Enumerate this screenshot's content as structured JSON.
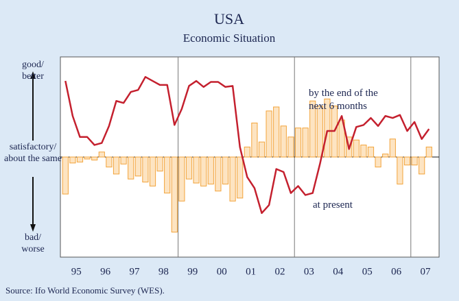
{
  "chart_data": {
    "type": "bar",
    "title": "USA",
    "subtitle": "Economic Situation",
    "source": "Source: Ifo World Economic Survey (WES).",
    "y_labels": [
      [
        "good/",
        "better"
      ],
      [
        "satisfactory/",
        "about the same"
      ],
      [
        "bad/",
        "worse"
      ]
    ],
    "categories": [
      null,
      "95",
      null,
      null,
      null,
      "96",
      null,
      null,
      null,
      "97",
      null,
      null,
      null,
      "98",
      null,
      null,
      null,
      "99",
      null,
      null,
      null,
      "00",
      null,
      null,
      null,
      "01",
      null,
      null,
      null,
      "02",
      null,
      null,
      null,
      "03",
      null,
      null,
      null,
      "04",
      null,
      null,
      null,
      "05",
      null,
      null,
      null,
      "06",
      null,
      null,
      null,
      "07",
      null
    ],
    "ylim": [
      -100,
      100
    ],
    "series": [
      {
        "name": "at present",
        "type": "bar",
        "color": "#f2a33a",
        "fill": "#fde4c2",
        "values": [
          -37,
          -6,
          -5,
          -2,
          -3,
          5,
          -10,
          -17,
          -7,
          -22,
          -19,
          -25,
          -29,
          -14,
          -36,
          -75,
          -44,
          -22,
          -26,
          -29,
          -27,
          -34,
          -27,
          -44,
          -41,
          10,
          34,
          15,
          46,
          50,
          31,
          20,
          29,
          29,
          56,
          51,
          58,
          51,
          37,
          20,
          17,
          12,
          10,
          -10,
          3,
          18,
          -27,
          -8,
          -8,
          -17,
          10
        ]
      },
      {
        "name": "by the end of the next 6 months",
        "type": "line",
        "color": "#c4202e",
        "values": [
          76,
          41,
          20,
          20,
          12,
          14,
          31,
          56,
          54,
          65,
          67,
          80,
          76,
          72,
          72,
          32,
          48,
          71,
          76,
          70,
          75,
          75,
          70,
          71,
          10,
          -20,
          -31,
          -56,
          -48,
          -12,
          -15,
          -36,
          -29,
          -38,
          -36,
          -7,
          26,
          26,
          41,
          8,
          30,
          32,
          39,
          31,
          41,
          39,
          42,
          26,
          35,
          18,
          28
        ]
      }
    ]
  }
}
